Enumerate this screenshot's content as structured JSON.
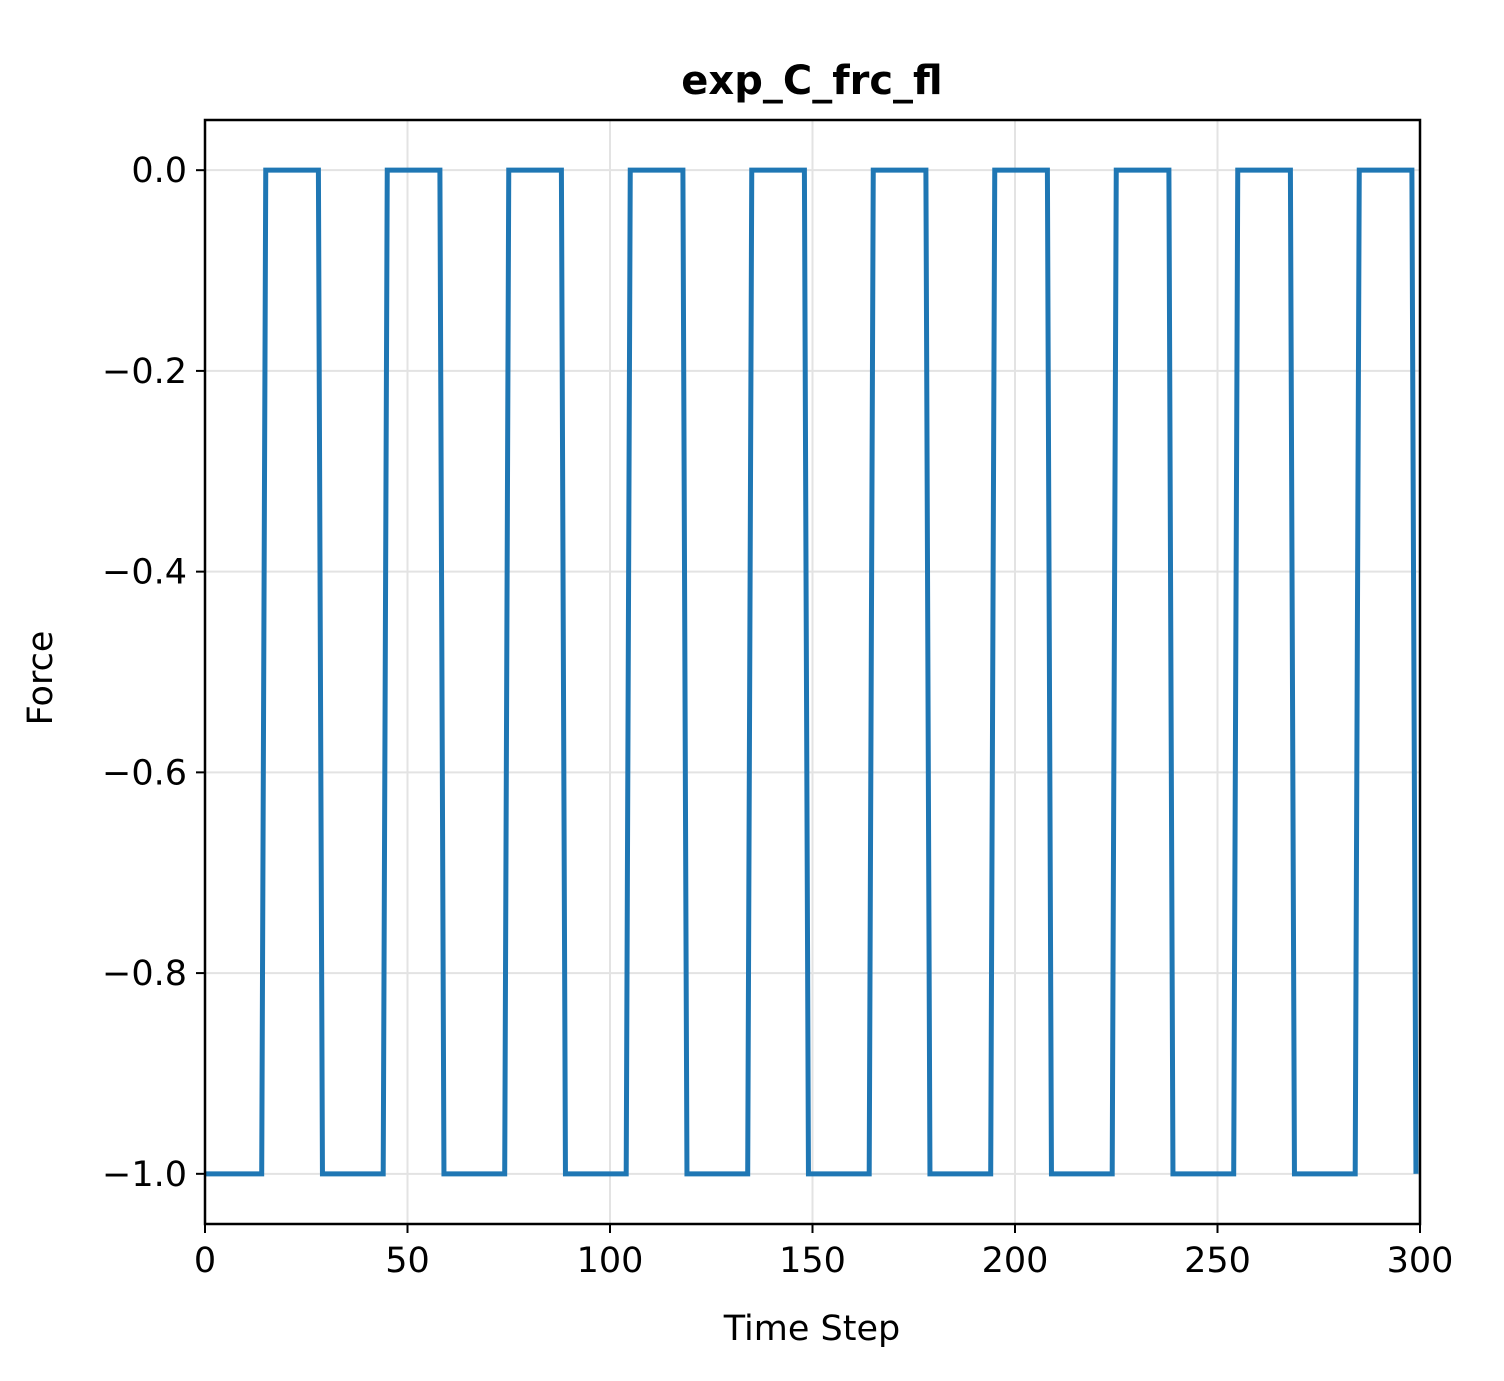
{
  "chart_data": {
    "type": "line",
    "title": "exp_C_frc_fl",
    "xlabel": "Time Step",
    "ylabel": "Force",
    "xlim": [
      0,
      300
    ],
    "ylim": [
      -1.05,
      0.05
    ],
    "grid": true,
    "xticks": [
      0,
      50,
      100,
      150,
      200,
      250,
      300
    ],
    "xtick_labels": [
      "0",
      "50",
      "100",
      "150",
      "200",
      "250",
      "300"
    ],
    "yticks": [
      0.0,
      -0.2,
      -0.4,
      -0.6,
      -0.8,
      -1.0
    ],
    "ytick_labels": [
      "0.0",
      "−0.2",
      "−0.4",
      "−0.6",
      "−0.8",
      "−1.0"
    ],
    "series": [
      {
        "color": "#1f77b4",
        "x": [
          0,
          14,
          15,
          28,
          29,
          44,
          45,
          58,
          59,
          74,
          75,
          88,
          89,
          104,
          105,
          118,
          119,
          134,
          135,
          148,
          149,
          164,
          165,
          178,
          179,
          194,
          195,
          208,
          209,
          224,
          225,
          238,
          239,
          254,
          255,
          268,
          269,
          284,
          285,
          298,
          299
        ],
        "y": [
          -1,
          -1,
          0,
          0,
          -1,
          -1,
          0,
          0,
          -1,
          -1,
          0,
          0,
          -1,
          -1,
          0,
          0,
          -1,
          -1,
          0,
          0,
          -1,
          -1,
          0,
          0,
          -1,
          -1,
          0,
          0,
          -1,
          -1,
          0,
          0,
          -1,
          -1,
          0,
          0,
          -1,
          -1,
          0,
          0,
          -1
        ]
      }
    ]
  }
}
